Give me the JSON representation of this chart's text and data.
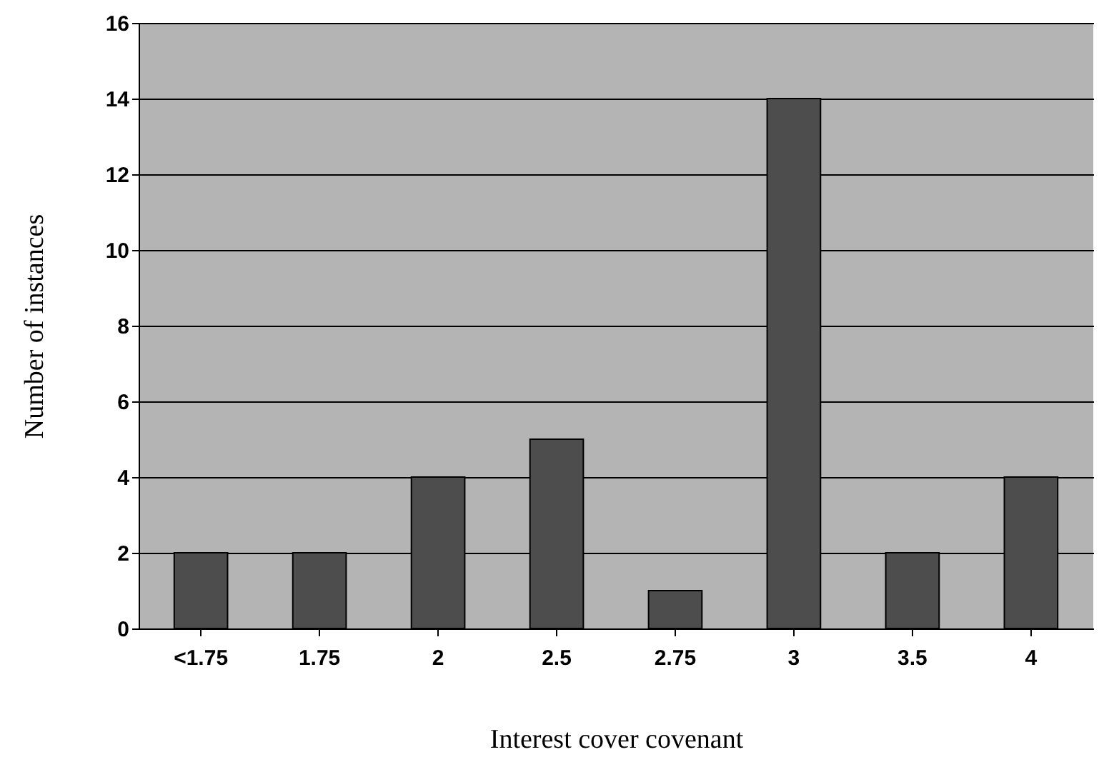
{
  "chart_data": {
    "type": "bar",
    "xlabel": "Interest cover covenant",
    "ylabel": "Number of instances",
    "categories": [
      "<1.75",
      "1.75",
      "2",
      "2.5",
      "2.75",
      "3",
      "3.5",
      "4"
    ],
    "values": [
      2,
      2,
      4,
      5,
      1,
      14,
      2,
      4
    ],
    "color": "#4d4d4d",
    "ylim": [
      0,
      16
    ],
    "yticks": [
      0,
      2,
      4,
      6,
      8,
      10,
      12,
      14,
      16
    ],
    "grid": "y"
  }
}
